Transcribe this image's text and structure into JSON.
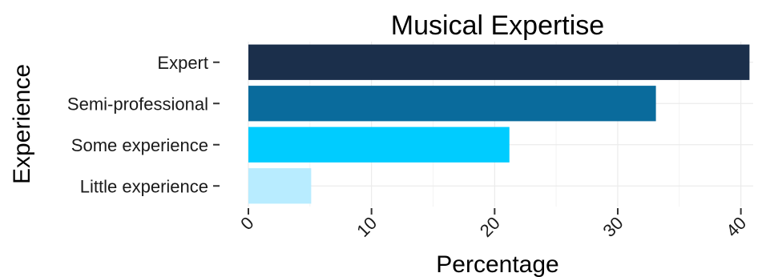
{
  "chart_data": {
    "type": "bar",
    "orientation": "horizontal",
    "title": "Musical Expertise",
    "xlabel": "Percentage",
    "ylabel": "Experience",
    "categories": [
      "Expert",
      "Semi-professional",
      "Some experience",
      "Little experience"
    ],
    "values": [
      40.7,
      33.1,
      21.2,
      5.1
    ],
    "colors": [
      "#1b2f4b",
      "#0a6b9c",
      "#00ccff",
      "#b8ecff"
    ],
    "xlim": [
      0,
      41
    ],
    "xticks": [
      0,
      10,
      20,
      30,
      40
    ],
    "grid": true,
    "legend": "none"
  }
}
